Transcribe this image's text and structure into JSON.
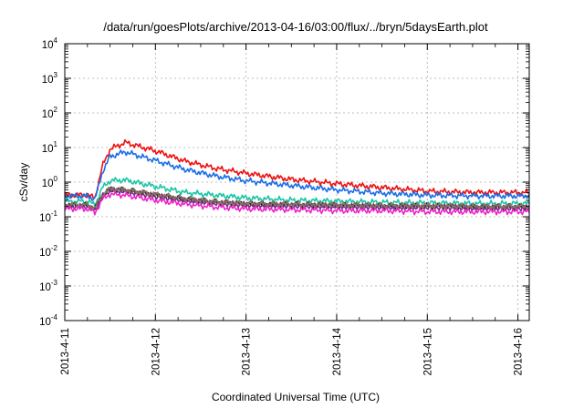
{
  "chart_data": {
    "type": "line",
    "title": "/data/run/goesPlots/archive/2013-04-16/03:00/flux/../bryn/5daysEarth.plot",
    "xlabel": "Coordinated Universal Time (UTC)",
    "ylabel": "cSv/day",
    "y_scale": "log",
    "ylim": [
      0.0001,
      10000
    ],
    "xlim": [
      "2013-04-11T00:00",
      "2013-04-16T03:00"
    ],
    "x_tick_labels": [
      "2013-4-11",
      "2013-4-12",
      "2013-4-13",
      "2013-4-14",
      "2013-4-15",
      "2013-4-16"
    ],
    "y_ticks": [
      {
        "base": "10",
        "exp": "-4"
      },
      {
        "base": "10",
        "exp": "-3"
      },
      {
        "base": "10",
        "exp": "-2"
      },
      {
        "base": "10",
        "exp": "-1"
      },
      {
        "base": "10",
        "exp": "0"
      },
      {
        "base": "10",
        "exp": "1"
      },
      {
        "base": "10",
        "exp": "2"
      },
      {
        "base": "10",
        "exp": "3"
      },
      {
        "base": "10",
        "exp": "4"
      }
    ],
    "grid": true,
    "x": [
      "2013-04-11T00:00",
      "2013-04-11T06:00",
      "2013-04-11T08:00",
      "2013-04-11T10:00",
      "2013-04-11T12:00",
      "2013-04-11T16:00",
      "2013-04-12T00:00",
      "2013-04-12T08:00",
      "2013-04-12T16:00",
      "2013-04-13T00:00",
      "2013-04-13T12:00",
      "2013-04-14T00:00",
      "2013-04-14T12:00",
      "2013-04-15T00:00",
      "2013-04-15T12:00",
      "2013-04-16T00:00",
      "2013-04-16T03:00"
    ],
    "series": [
      {
        "color": "#ee1111",
        "values": [
          0.42,
          0.42,
          0.35,
          3.0,
          9.0,
          14.0,
          8.0,
          4.0,
          2.5,
          1.8,
          1.2,
          0.9,
          0.7,
          0.55,
          0.5,
          0.5,
          0.5
        ]
      },
      {
        "color": "#1a6ee8",
        "values": [
          0.4,
          0.4,
          0.32,
          2.0,
          5.5,
          7.5,
          4.2,
          2.3,
          1.5,
          1.1,
          0.8,
          0.6,
          0.48,
          0.42,
          0.4,
          0.4,
          0.4
        ]
      },
      {
        "color": "#19c6a6",
        "values": [
          0.28,
          0.28,
          0.22,
          0.7,
          1.1,
          1.15,
          0.75,
          0.5,
          0.42,
          0.35,
          0.3,
          0.28,
          0.26,
          0.25,
          0.24,
          0.24,
          0.24
        ]
      },
      {
        "color": "#222222",
        "values": [
          0.21,
          0.21,
          0.17,
          0.42,
          0.62,
          0.58,
          0.42,
          0.32,
          0.26,
          0.23,
          0.22,
          0.21,
          0.2,
          0.2,
          0.19,
          0.19,
          0.19
        ]
      },
      {
        "color": "#7b2b8a",
        "values": [
          0.2,
          0.2,
          0.16,
          0.4,
          0.58,
          0.54,
          0.39,
          0.3,
          0.25,
          0.22,
          0.21,
          0.2,
          0.19,
          0.19,
          0.18,
          0.18,
          0.18
        ]
      },
      {
        "color": "#8a7560",
        "values": [
          0.22,
          0.22,
          0.18,
          0.44,
          0.64,
          0.6,
          0.44,
          0.33,
          0.27,
          0.24,
          0.23,
          0.22,
          0.21,
          0.21,
          0.2,
          0.2,
          0.2
        ]
      },
      {
        "color": "#ee22cc",
        "values": [
          0.17,
          0.17,
          0.13,
          0.32,
          0.45,
          0.42,
          0.3,
          0.23,
          0.19,
          0.17,
          0.16,
          0.15,
          0.15,
          0.14,
          0.14,
          0.14,
          0.14
        ]
      }
    ]
  }
}
